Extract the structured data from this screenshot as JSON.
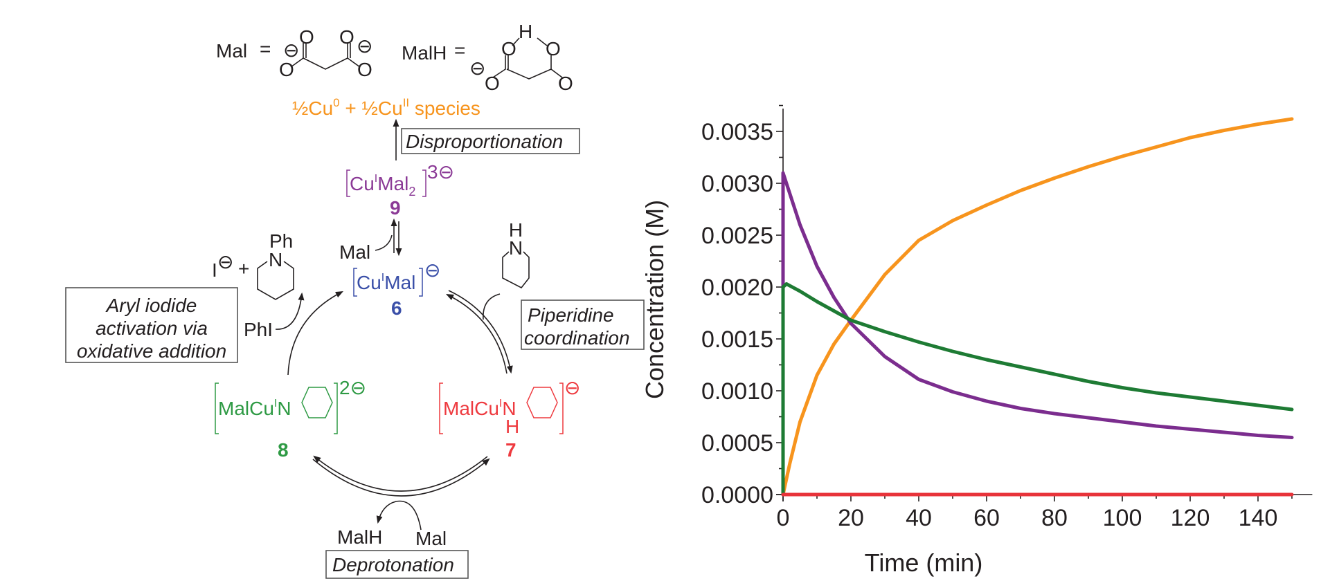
{
  "diagram": {
    "mal_def": {
      "label": "Mal",
      "eq": "=",
      "atoms": [
        "O",
        "O",
        "O",
        "O"
      ],
      "charge": "⊖"
    },
    "malh_def": {
      "label": "MalH",
      "eq": "=",
      "atoms": [
        "O",
        "O",
        "O",
        "O",
        "H"
      ],
      "charge": "⊖"
    },
    "disprop_product": {
      "a": "½Cu",
      "a_sup": "0",
      "plus": " + ½Cu",
      "b_sup": "II",
      "b": " species"
    },
    "disproportionation_label": "Disproportionation",
    "species_9": {
      "text": "Cu",
      "sup_ox": "I",
      "text2": "Mal",
      "sub": "2",
      "charge": "3⊖",
      "number": "9"
    },
    "mal_to_9": "Mal",
    "species_6": {
      "text": "Cu",
      "sup_ox": "I",
      "text2": "Mal",
      "charge": "⊖",
      "number": "6"
    },
    "iodide_product": {
      "iodide": "I",
      "charge": "⊖",
      "plus": "+",
      "ph": "Ph",
      "n": "N"
    },
    "aryl_box": [
      "Aryl iodide",
      "activation via",
      "oxidative addition"
    ],
    "phi": "PhI",
    "piperidine": {
      "h": "H",
      "n": "N"
    },
    "piperidine_box": [
      "Piperidine",
      "coordination"
    ],
    "species_8": {
      "text": "MalCu",
      "sup_ox": "I",
      "n": "N",
      "charge": "2⊖",
      "number": "8"
    },
    "species_7": {
      "text": "MalCu",
      "sup_ox": "I",
      "n": "N",
      "h": "H",
      "charge": "⊖",
      "number": "7"
    },
    "malh_out": "MalH",
    "mal_in": "Mal",
    "deprotonation_label": "Deprotonation",
    "colors": {
      "species_9": "#8b3a96",
      "species_6": "#3a4fa8",
      "species_8": "#2e9a44",
      "species_7": "#ee3a3f",
      "disprop": "#f7941d"
    }
  },
  "chart_data": {
    "type": "line",
    "xlabel": "Time (min)",
    "ylabel": "Concentration (M)",
    "xlim": [
      0,
      150
    ],
    "ylim": [
      0,
      0.0037
    ],
    "xticks": [
      "0",
      "20",
      "40",
      "60",
      "80",
      "100",
      "120",
      "140"
    ],
    "yticks": [
      "0.0000",
      "0.0005",
      "0.0010",
      "0.0015",
      "0.0020",
      "0.0025",
      "0.0030",
      "0.0035"
    ],
    "grid": false,
    "series": [
      {
        "color": "#f7941d",
        "x": [
          0,
          1,
          2,
          5,
          10,
          15,
          20,
          30,
          40,
          50,
          60,
          70,
          80,
          90,
          100,
          110,
          120,
          130,
          140,
          150
        ],
        "y": [
          0,
          0.00015,
          0.0003,
          0.0007,
          0.00115,
          0.00145,
          0.00168,
          0.00212,
          0.00245,
          0.00264,
          0.00279,
          0.00293,
          0.00305,
          0.00316,
          0.00326,
          0.00335,
          0.00344,
          0.00351,
          0.00357,
          0.00362
        ]
      },
      {
        "color": "#7b2d8e",
        "x": [
          0,
          0,
          2,
          5,
          10,
          15,
          20,
          30,
          40,
          50,
          60,
          70,
          80,
          90,
          100,
          110,
          120,
          130,
          140,
          150
        ],
        "y": [
          0,
          0.0031,
          0.0029,
          0.0026,
          0.0022,
          0.0019,
          0.00165,
          0.00133,
          0.00111,
          0.00099,
          0.0009,
          0.00083,
          0.00078,
          0.00074,
          0.0007,
          0.00066,
          0.00063,
          0.0006,
          0.00057,
          0.00055
        ]
      },
      {
        "color": "#1e7b34",
        "x": [
          0,
          0,
          1,
          5,
          10,
          20,
          30,
          40,
          50,
          60,
          70,
          80,
          90,
          100,
          110,
          120,
          130,
          140,
          150
        ],
        "y": [
          0,
          0.002,
          0.00203,
          0.00196,
          0.00186,
          0.00168,
          0.00157,
          0.00147,
          0.00138,
          0.0013,
          0.00123,
          0.00116,
          0.00109,
          0.00103,
          0.00098,
          0.00094,
          0.0009,
          0.00086,
          0.00082
        ]
      },
      {
        "color": "#e8333a",
        "x": [
          0,
          150
        ],
        "y": [
          0,
          0
        ]
      }
    ]
  }
}
